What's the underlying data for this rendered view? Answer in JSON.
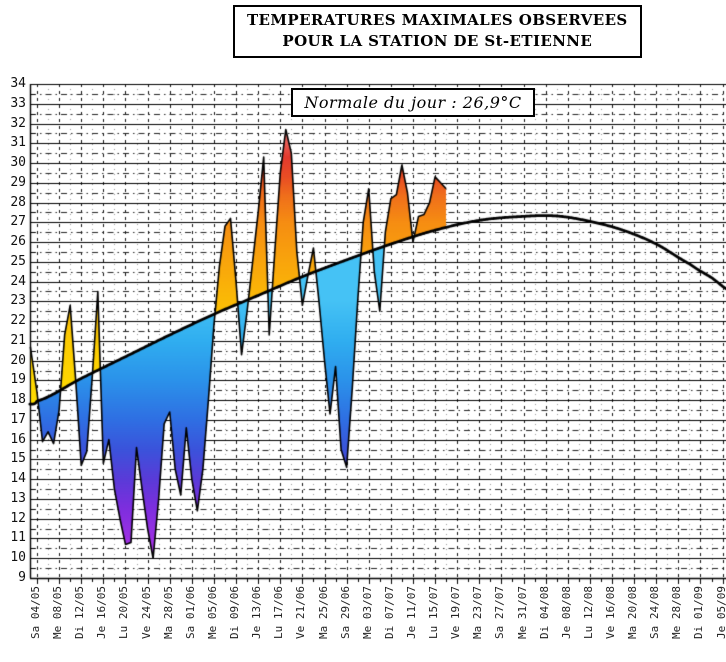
{
  "title": {
    "line1": "TEMPERATURES MAXIMALES OBSERVEES",
    "line2": "POUR LA STATION DE St-ETIENNE"
  },
  "annotation": {
    "text": "Normale du jour : 26,9°C"
  },
  "chart_data": {
    "type": "area",
    "title": "TEMPERATURES MAXIMALES OBSERVEES POUR LA STATION DE St-ETIENNE",
    "annotation": "Normale du jour : 26,9°C",
    "ylim": [
      9,
      34
    ],
    "y_ticks": [
      34,
      33,
      32,
      31,
      30,
      29,
      28,
      27,
      26,
      25,
      24,
      23,
      22,
      21,
      20,
      19,
      18,
      17,
      16,
      15,
      14,
      13,
      12,
      11,
      10,
      9
    ],
    "x_tick_step_days": 4,
    "x_tick_labels": [
      "Sa 04/05",
      "Me 08/05",
      "Di 12/05",
      "Je 16/05",
      "Lu 20/05",
      "Ve 24/05",
      "Ma 28/05",
      "Sa 01/06",
      "Me 05/06",
      "Di 09/06",
      "Je 13/06",
      "Lu 17/06",
      "Ve 21/06",
      "Ma 25/06",
      "Sa 29/06",
      "Me 03/07",
      "Di 07/07",
      "Je 11/07",
      "Lu 15/07",
      "Ve 19/07",
      "Ma 23/07",
      "Sa 27/07",
      "Me 31/07",
      "Di 04/08",
      "Je 08/08",
      "Lu 12/08",
      "Ve 16/08",
      "Ma 20/08",
      "Sa 24/08",
      "Me 28/08",
      "Di 01/09",
      "Je 05/09"
    ],
    "grid": {
      "degree_lines": "solid",
      "half_degree_lines": "dash-dot",
      "major_vertical_every_days": 4,
      "minor_vertical_every_days": 2
    },
    "series": [
      {
        "name": "normale-climatologique",
        "style": "smooth-black-curve",
        "points_day_temp": [
          [
            -1.3,
            17.8
          ],
          [
            0,
            17.95
          ],
          [
            8,
            19.1
          ],
          [
            16,
            20.2
          ],
          [
            24,
            21.3
          ],
          [
            32,
            22.35
          ],
          [
            40,
            23.3
          ],
          [
            48,
            24.25
          ],
          [
            56,
            25.1
          ],
          [
            64,
            25.9
          ],
          [
            72,
            26.6
          ],
          [
            80,
            27.1
          ],
          [
            88,
            27.3
          ],
          [
            94,
            27.32
          ],
          [
            100,
            27.05
          ],
          [
            106,
            26.6
          ],
          [
            112,
            25.9
          ],
          [
            118,
            24.9
          ],
          [
            122,
            24.2
          ],
          [
            125.6,
            23.5
          ]
        ]
      },
      {
        "name": "temperature-maximale-observee",
        "style": "jagged-line-gradient-fill",
        "first_day_label": "04/05",
        "last_day_label": "17/07",
        "points_day_temp": [
          [
            -1.2,
            20.7
          ],
          [
            0,
            18.4
          ],
          [
            1,
            15.9
          ],
          [
            2,
            16.4
          ],
          [
            3,
            15.8
          ],
          [
            4,
            17.5
          ],
          [
            5,
            21.3
          ],
          [
            6,
            22.8
          ],
          [
            7,
            19.0
          ],
          [
            8,
            14.7
          ],
          [
            9,
            15.4
          ],
          [
            10,
            19.2
          ],
          [
            11,
            23.5
          ],
          [
            12,
            14.8
          ],
          [
            13,
            16.0
          ],
          [
            14,
            13.5
          ],
          [
            15,
            12.0
          ],
          [
            16,
            10.7
          ],
          [
            17,
            10.8
          ],
          [
            18,
            15.6
          ],
          [
            19,
            13.5
          ],
          [
            20,
            11.5
          ],
          [
            21,
            10.0
          ],
          [
            22,
            13.0
          ],
          [
            23,
            16.8
          ],
          [
            24,
            17.4
          ],
          [
            25,
            14.5
          ],
          [
            26,
            13.2
          ],
          [
            27,
            16.6
          ],
          [
            28,
            14.0
          ],
          [
            29,
            12.4
          ],
          [
            30,
            14.5
          ],
          [
            31,
            18.0
          ],
          [
            32,
            21.8
          ],
          [
            33,
            24.8
          ],
          [
            34,
            26.8
          ],
          [
            35,
            27.2
          ],
          [
            36,
            24.0
          ],
          [
            37,
            20.3
          ],
          [
            38,
            22.5
          ],
          [
            39,
            25.0
          ],
          [
            40,
            27.5
          ],
          [
            41,
            30.3
          ],
          [
            42,
            21.3
          ],
          [
            43,
            25.5
          ],
          [
            44,
            29.5
          ],
          [
            45,
            31.7
          ],
          [
            46,
            30.5
          ],
          [
            47,
            25.5
          ],
          [
            48,
            22.8
          ],
          [
            49,
            24.3
          ],
          [
            50,
            25.7
          ],
          [
            51,
            23.0
          ],
          [
            52,
            20.0
          ],
          [
            53,
            17.3
          ],
          [
            54,
            19.7
          ],
          [
            55,
            15.5
          ],
          [
            56,
            14.6
          ],
          [
            57,
            18.5
          ],
          [
            58,
            23.0
          ],
          [
            59,
            27.0
          ],
          [
            60,
            28.7
          ],
          [
            61,
            24.5
          ],
          [
            62,
            22.5
          ],
          [
            63,
            26.5
          ],
          [
            64,
            28.2
          ],
          [
            65,
            28.4
          ],
          [
            66,
            29.9
          ],
          [
            67,
            28.5
          ],
          [
            68,
            26.0
          ],
          [
            69,
            27.3
          ],
          [
            70,
            27.4
          ],
          [
            71,
            28.0
          ],
          [
            72,
            29.3
          ],
          [
            73,
            29.0
          ],
          [
            74,
            28.7
          ]
        ]
      }
    ],
    "colors": {
      "above_normal_gradient": [
        [
          18,
          "#FEDB00"
        ],
        [
          21,
          "#FDCB02"
        ],
        [
          23,
          "#FBBA06"
        ],
        [
          25,
          "#F9A50C"
        ],
        [
          27,
          "#F68D12"
        ],
        [
          28.3,
          "#F0701B"
        ],
        [
          29.3,
          "#E94D24"
        ],
        [
          30.3,
          "#E33A2E"
        ],
        [
          31.3,
          "#EC6B65"
        ],
        [
          32.2,
          "#F28E8E"
        ],
        [
          34,
          "#F8A8A8"
        ]
      ],
      "below_normal_gradient": [
        [
          23,
          "#45C2F5"
        ],
        [
          21,
          "#30AEF0"
        ],
        [
          19,
          "#2B92EA"
        ],
        [
          17,
          "#2F6FE3"
        ],
        [
          15.5,
          "#3B53DB"
        ],
        [
          14,
          "#5A3BD8"
        ],
        [
          12.5,
          "#7E2EDE"
        ],
        [
          11,
          "#9C30E4"
        ],
        [
          10,
          "#B238E9"
        ],
        [
          9,
          "#C944EE"
        ]
      ],
      "curve": "#000000",
      "grid_major": "#111111",
      "grid_minor": "#999999"
    }
  }
}
